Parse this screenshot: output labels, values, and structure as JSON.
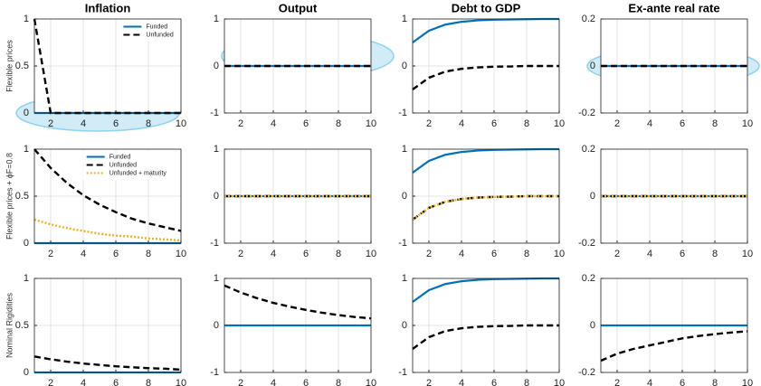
{
  "chart_data": [
    {
      "type": "line",
      "title": "Inflation",
      "ylabel": "Flexible prices",
      "x": [
        1,
        2,
        3,
        4,
        5,
        6,
        7,
        8,
        9,
        10
      ],
      "xlim": [
        1,
        10
      ],
      "xticks": [
        2,
        4,
        6,
        8,
        10
      ],
      "ylim": [
        0,
        1
      ],
      "yticks": [
        0,
        0.5,
        1
      ],
      "grid": true,
      "legend": "upper-right",
      "series": [
        {
          "name": "Funded",
          "color": "#0072bd",
          "dash": "solid",
          "values": [
            0,
            0,
            0,
            0,
            0,
            0,
            0,
            0,
            0,
            0
          ]
        },
        {
          "name": "Unfunded",
          "color": "#000000",
          "dash": "dashed",
          "values": [
            1,
            0,
            0,
            0,
            0,
            0,
            0,
            0,
            0,
            0
          ]
        }
      ]
    },
    {
      "type": "line",
      "title": "Output",
      "x": [
        1,
        2,
        3,
        4,
        5,
        6,
        7,
        8,
        9,
        10
      ],
      "xlim": [
        1,
        10
      ],
      "xticks": [
        2,
        4,
        6,
        8,
        10
      ],
      "ylim": [
        -1,
        1
      ],
      "yticks": [
        -1,
        0,
        1
      ],
      "grid": true,
      "series": [
        {
          "color": "#0072bd",
          "dash": "solid",
          "values": [
            0,
            0,
            0,
            0,
            0,
            0,
            0,
            0,
            0,
            0
          ]
        },
        {
          "color": "#000000",
          "dash": "dashed",
          "values": [
            0,
            0,
            0,
            0,
            0,
            0,
            0,
            0,
            0,
            0
          ]
        }
      ]
    },
    {
      "type": "line",
      "title": "Debt to GDP",
      "x": [
        1,
        2,
        3,
        4,
        5,
        6,
        7,
        8,
        9,
        10
      ],
      "xlim": [
        1,
        10
      ],
      "xticks": [
        2,
        4,
        6,
        8,
        10
      ],
      "ylim": [
        -1,
        1
      ],
      "yticks": [
        -1,
        0,
        1
      ],
      "grid": true,
      "series": [
        {
          "color": "#0072bd",
          "dash": "solid",
          "values": [
            0.5,
            0.75,
            0.88,
            0.94,
            0.97,
            0.985,
            0.99,
            0.995,
            1,
            1
          ]
        },
        {
          "color": "#000000",
          "dash": "dashed",
          "values": [
            -0.5,
            -0.25,
            -0.12,
            -0.06,
            -0.03,
            -0.015,
            -0.01,
            0,
            0,
            0
          ]
        }
      ]
    },
    {
      "type": "line",
      "title": "Ex-ante real rate",
      "x": [
        1,
        2,
        3,
        4,
        5,
        6,
        7,
        8,
        9,
        10
      ],
      "xlim": [
        1,
        10
      ],
      "xticks": [
        2,
        4,
        6,
        8,
        10
      ],
      "ylim": [
        -0.2,
        0.2
      ],
      "yticks": [
        -0.2,
        0,
        0.2
      ],
      "grid": true,
      "series": [
        {
          "color": "#0072bd",
          "dash": "solid",
          "values": [
            0,
            0,
            0,
            0,
            0,
            0,
            0,
            0,
            0,
            0
          ]
        },
        {
          "color": "#000000",
          "dash": "dashed",
          "values": [
            0,
            0,
            0,
            0,
            0,
            0,
            0,
            0,
            0,
            0
          ]
        }
      ]
    },
    {
      "type": "line",
      "ylabel": "Flexible prices + ϕF=0.8",
      "x": [
        1,
        2,
        3,
        4,
        5,
        6,
        7,
        8,
        9,
        10
      ],
      "xlim": [
        1,
        10
      ],
      "xticks": [
        2,
        4,
        6,
        8,
        10
      ],
      "ylim": [
        0,
        1
      ],
      "yticks": [
        0,
        0.5,
        1
      ],
      "grid": true,
      "legend": "upper-right",
      "series": [
        {
          "name": "Funded",
          "color": "#0072bd",
          "dash": "solid",
          "values": [
            0,
            0,
            0,
            0,
            0,
            0,
            0,
            0,
            0,
            0
          ]
        },
        {
          "name": "Unfunded",
          "color": "#000000",
          "dash": "dashed",
          "values": [
            1,
            0.8,
            0.64,
            0.51,
            0.41,
            0.33,
            0.26,
            0.21,
            0.17,
            0.13
          ]
        },
        {
          "name": "Unfunded + maturity",
          "color": "#edb120",
          "dash": "dotted",
          "values": [
            0.25,
            0.2,
            0.16,
            0.13,
            0.1,
            0.08,
            0.07,
            0.05,
            0.04,
            0.03
          ]
        }
      ]
    },
    {
      "type": "line",
      "x": [
        1,
        2,
        3,
        4,
        5,
        6,
        7,
        8,
        9,
        10
      ],
      "xlim": [
        1,
        10
      ],
      "xticks": [
        2,
        4,
        6,
        8,
        10
      ],
      "ylim": [
        -1,
        1
      ],
      "yticks": [
        -1,
        0,
        1
      ],
      "grid": true,
      "series": [
        {
          "color": "#0072bd",
          "dash": "solid",
          "values": [
            0,
            0,
            0,
            0,
            0,
            0,
            0,
            0,
            0,
            0
          ]
        },
        {
          "color": "#000000",
          "dash": "dashed",
          "values": [
            0,
            0,
            0,
            0,
            0,
            0,
            0,
            0,
            0,
            0
          ]
        },
        {
          "color": "#edb120",
          "dash": "dotted",
          "values": [
            0,
            0,
            0,
            0,
            0,
            0,
            0,
            0,
            0,
            0
          ]
        }
      ]
    },
    {
      "type": "line",
      "x": [
        1,
        2,
        3,
        4,
        5,
        6,
        7,
        8,
        9,
        10
      ],
      "xlim": [
        1,
        10
      ],
      "xticks": [
        2,
        4,
        6,
        8,
        10
      ],
      "ylim": [
        -1,
        1
      ],
      "yticks": [
        -1,
        0,
        1
      ],
      "grid": true,
      "series": [
        {
          "color": "#0072bd",
          "dash": "solid",
          "values": [
            0.5,
            0.75,
            0.88,
            0.94,
            0.97,
            0.985,
            0.99,
            0.995,
            1,
            1
          ]
        },
        {
          "color": "#000000",
          "dash": "dashed",
          "values": [
            -0.5,
            -0.25,
            -0.12,
            -0.06,
            -0.03,
            -0.015,
            -0.01,
            0,
            0,
            0
          ]
        },
        {
          "color": "#edb120",
          "dash": "dotted",
          "values": [
            -0.5,
            -0.25,
            -0.12,
            -0.06,
            -0.03,
            -0.015,
            -0.01,
            0,
            0,
            0
          ]
        }
      ]
    },
    {
      "type": "line",
      "x": [
        1,
        2,
        3,
        4,
        5,
        6,
        7,
        8,
        9,
        10
      ],
      "xlim": [
        1,
        10
      ],
      "xticks": [
        2,
        4,
        6,
        8,
        10
      ],
      "ylim": [
        -0.2,
        0.2
      ],
      "yticks": [
        -0.2,
        0,
        0.2
      ],
      "grid": true,
      "series": [
        {
          "color": "#0072bd",
          "dash": "solid",
          "values": [
            0,
            0,
            0,
            0,
            0,
            0,
            0,
            0,
            0,
            0
          ]
        },
        {
          "color": "#000000",
          "dash": "dashed",
          "values": [
            0,
            0,
            0,
            0,
            0,
            0,
            0,
            0,
            0,
            0
          ]
        },
        {
          "color": "#edb120",
          "dash": "dotted",
          "values": [
            0,
            0,
            0,
            0,
            0,
            0,
            0,
            0,
            0,
            0
          ]
        }
      ]
    },
    {
      "type": "line",
      "ylabel": "Nominal Rigidities",
      "x": [
        1,
        2,
        3,
        4,
        5,
        6,
        7,
        8,
        9,
        10
      ],
      "xlim": [
        1,
        10
      ],
      "xticks": [
        2,
        4,
        6,
        8,
        10
      ],
      "ylim": [
        0,
        1
      ],
      "yticks": [
        0,
        0.5,
        1
      ],
      "grid": true,
      "series": [
        {
          "color": "#0072bd",
          "dash": "solid",
          "values": [
            0,
            0,
            0,
            0,
            0,
            0,
            0,
            0,
            0,
            0
          ]
        },
        {
          "color": "#000000",
          "dash": "dashed",
          "values": [
            0.17,
            0.14,
            0.115,
            0.095,
            0.08,
            0.065,
            0.055,
            0.045,
            0.04,
            0.03
          ]
        }
      ]
    },
    {
      "type": "line",
      "x": [
        1,
        2,
        3,
        4,
        5,
        6,
        7,
        8,
        9,
        10
      ],
      "xlim": [
        1,
        10
      ],
      "xticks": [
        2,
        4,
        6,
        8,
        10
      ],
      "ylim": [
        -1,
        1
      ],
      "yticks": [
        -1,
        0,
        1
      ],
      "grid": true,
      "series": [
        {
          "color": "#0072bd",
          "dash": "solid",
          "values": [
            0,
            0,
            0,
            0,
            0,
            0,
            0,
            0,
            0,
            0
          ]
        },
        {
          "color": "#000000",
          "dash": "dashed",
          "values": [
            0.85,
            0.7,
            0.58,
            0.48,
            0.4,
            0.33,
            0.27,
            0.22,
            0.18,
            0.15
          ]
        }
      ]
    },
    {
      "type": "line",
      "x": [
        1,
        2,
        3,
        4,
        5,
        6,
        7,
        8,
        9,
        10
      ],
      "xlim": [
        1,
        10
      ],
      "xticks": [
        2,
        4,
        6,
        8,
        10
      ],
      "ylim": [
        -1,
        1
      ],
      "yticks": [
        -1,
        0,
        1
      ],
      "grid": true,
      "series": [
        {
          "color": "#0072bd",
          "dash": "solid",
          "values": [
            0.5,
            0.75,
            0.88,
            0.94,
            0.97,
            0.985,
            0.99,
            0.995,
            1,
            1
          ]
        },
        {
          "color": "#000000",
          "dash": "dashed",
          "values": [
            -0.5,
            -0.25,
            -0.12,
            -0.06,
            -0.03,
            -0.015,
            -0.01,
            0,
            0,
            0
          ]
        }
      ]
    },
    {
      "type": "line",
      "x": [
        1,
        2,
        3,
        4,
        5,
        6,
        7,
        8,
        9,
        10
      ],
      "xlim": [
        1,
        10
      ],
      "xticks": [
        2,
        4,
        6,
        8,
        10
      ],
      "ylim": [
        -0.2,
        0.2
      ],
      "yticks": [
        -0.2,
        0,
        0.2
      ],
      "grid": true,
      "series": [
        {
          "color": "#0072bd",
          "dash": "solid",
          "values": [
            0,
            0,
            0,
            0,
            0,
            0,
            0,
            0,
            0,
            0
          ]
        },
        {
          "color": "#000000",
          "dash": "dashed",
          "values": [
            -0.15,
            -0.12,
            -0.1,
            -0.085,
            -0.07,
            -0.055,
            -0.045,
            -0.037,
            -0.03,
            -0.025
          ]
        }
      ]
    }
  ]
}
